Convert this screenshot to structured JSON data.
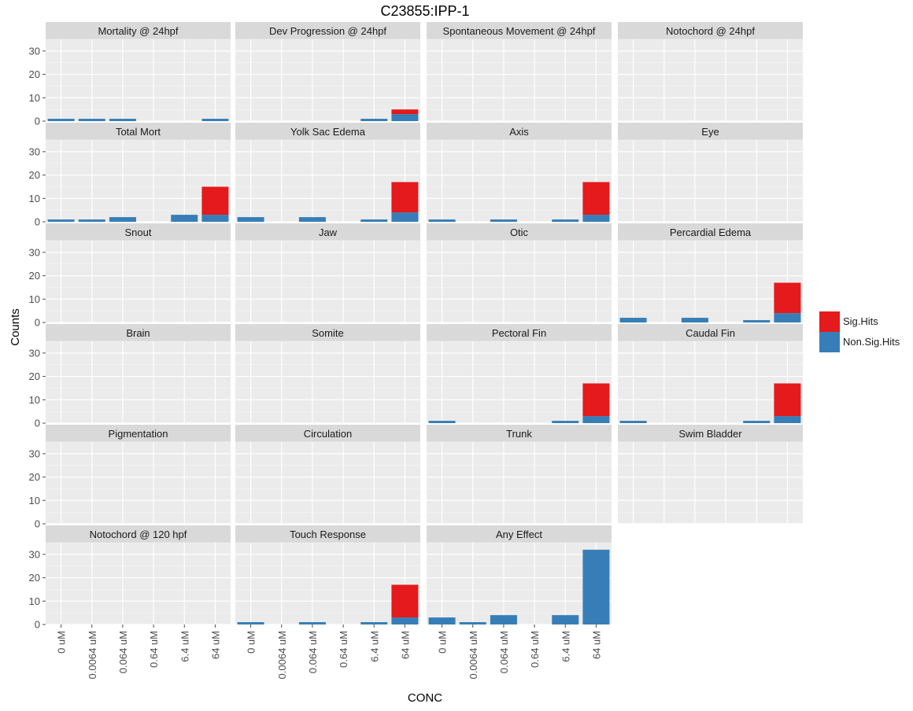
{
  "chart_data": {
    "type": "bar",
    "stacked": true,
    "title": "C23855:IPP-1",
    "xlabel": "CONC",
    "ylabel": "Counts",
    "ylim": [
      0,
      35
    ],
    "yticks": [
      0,
      10,
      20,
      30
    ],
    "grid": true,
    "legend_position": "right",
    "categories": [
      "0 uM",
      "0.0064 uM",
      "0.064 uM",
      "0.64 uM",
      "6.4 uM",
      "64 uM"
    ],
    "series": [
      {
        "name": "Sig.Hits",
        "color": "#e41a1c"
      },
      {
        "name": "Non.Sig.Hits",
        "color": "#377eb8"
      }
    ],
    "panels": [
      {
        "label": "Mortality @ 24hpf",
        "sig": [
          0,
          0,
          0,
          0,
          0,
          0
        ],
        "nonsig": [
          1,
          1,
          1,
          0,
          0,
          1
        ]
      },
      {
        "label": "Dev Progression @ 24hpf",
        "sig": [
          0,
          0,
          0,
          0,
          0,
          2
        ],
        "nonsig": [
          0,
          0,
          0,
          0,
          1,
          3
        ]
      },
      {
        "label": "Spontaneous Movement @ 24hpf",
        "sig": [
          0,
          0,
          0,
          0,
          0,
          0
        ],
        "nonsig": [
          0,
          0,
          0,
          0,
          0,
          0
        ]
      },
      {
        "label": "Notochord @ 24hpf",
        "sig": [
          0,
          0,
          0,
          0,
          0,
          0
        ],
        "nonsig": [
          0,
          0,
          0,
          0,
          0,
          0
        ]
      },
      {
        "label": "Total Mort",
        "sig": [
          0,
          0,
          0,
          0,
          0,
          12
        ],
        "nonsig": [
          1,
          1,
          2,
          0,
          3,
          3
        ]
      },
      {
        "label": "Yolk Sac Edema",
        "sig": [
          0,
          0,
          0,
          0,
          0,
          13
        ],
        "nonsig": [
          2,
          0,
          2,
          0,
          1,
          4
        ]
      },
      {
        "label": "Axis",
        "sig": [
          0,
          0,
          0,
          0,
          0,
          14
        ],
        "nonsig": [
          1,
          0,
          1,
          0,
          1,
          3
        ]
      },
      {
        "label": "Eye",
        "sig": [
          0,
          0,
          0,
          0,
          0,
          0
        ],
        "nonsig": [
          0,
          0,
          0,
          0,
          0,
          0
        ]
      },
      {
        "label": "Snout",
        "sig": [
          0,
          0,
          0,
          0,
          0,
          0
        ],
        "nonsig": [
          0,
          0,
          0,
          0,
          0,
          0
        ]
      },
      {
        "label": "Jaw",
        "sig": [
          0,
          0,
          0,
          0,
          0,
          0
        ],
        "nonsig": [
          0,
          0,
          0,
          0,
          0,
          0
        ]
      },
      {
        "label": "Otic",
        "sig": [
          0,
          0,
          0,
          0,
          0,
          0
        ],
        "nonsig": [
          0,
          0,
          0,
          0,
          0,
          0
        ]
      },
      {
        "label": "Percardial Edema",
        "sig": [
          0,
          0,
          0,
          0,
          0,
          13
        ],
        "nonsig": [
          2,
          0,
          2,
          0,
          1,
          4
        ]
      },
      {
        "label": "Brain",
        "sig": [
          0,
          0,
          0,
          0,
          0,
          0
        ],
        "nonsig": [
          0,
          0,
          0,
          0,
          0,
          0
        ]
      },
      {
        "label": "Somite",
        "sig": [
          0,
          0,
          0,
          0,
          0,
          0
        ],
        "nonsig": [
          0,
          0,
          0,
          0,
          0,
          0
        ]
      },
      {
        "label": "Pectoral Fin",
        "sig": [
          0,
          0,
          0,
          0,
          0,
          14
        ],
        "nonsig": [
          1,
          0,
          0,
          0,
          1,
          3
        ]
      },
      {
        "label": "Caudal Fin",
        "sig": [
          0,
          0,
          0,
          0,
          0,
          14
        ],
        "nonsig": [
          1,
          0,
          0,
          0,
          1,
          3
        ]
      },
      {
        "label": "Pigmentation",
        "sig": [
          0,
          0,
          0,
          0,
          0,
          0
        ],
        "nonsig": [
          0,
          0,
          0,
          0,
          0,
          0
        ]
      },
      {
        "label": "Circulation",
        "sig": [
          0,
          0,
          0,
          0,
          0,
          0
        ],
        "nonsig": [
          0,
          0,
          0,
          0,
          0,
          0
        ]
      },
      {
        "label": "Trunk",
        "sig": [
          0,
          0,
          0,
          0,
          0,
          0
        ],
        "nonsig": [
          0,
          0,
          0,
          0,
          0,
          0
        ]
      },
      {
        "label": "Swim Bladder",
        "sig": [
          0,
          0,
          0,
          0,
          0,
          0
        ],
        "nonsig": [
          0,
          0,
          0,
          0,
          0,
          0
        ]
      },
      {
        "label": "Notochord @ 120 hpf",
        "sig": [
          0,
          0,
          0,
          0,
          0,
          0
        ],
        "nonsig": [
          0,
          0,
          0,
          0,
          0,
          0
        ]
      },
      {
        "label": "Touch Response",
        "sig": [
          0,
          0,
          0,
          0,
          0,
          14
        ],
        "nonsig": [
          1,
          0,
          1,
          0,
          1,
          3
        ]
      },
      {
        "label": "Any Effect",
        "sig": [
          0,
          0,
          0,
          0,
          0,
          0
        ],
        "nonsig": [
          3,
          1,
          4,
          0,
          4,
          32
        ]
      }
    ]
  }
}
